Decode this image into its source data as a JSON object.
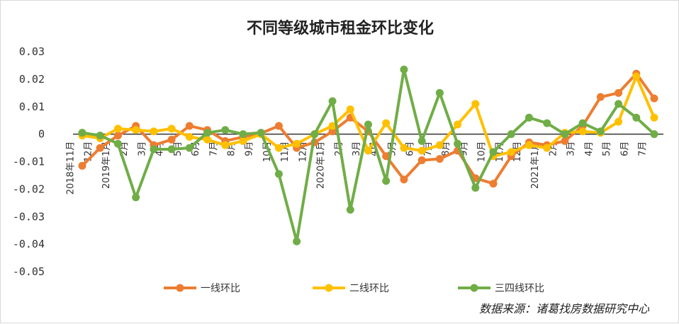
{
  "chart_data": {
    "type": "line",
    "title": "不同等级城市租金环比变化",
    "source": "数据来源：诸葛找房数据研究中心",
    "ylim": [
      -0.05,
      0.03
    ],
    "yticks": [
      "0.03",
      "0.02",
      "0.01",
      "0",
      "-0.01",
      "-0.02",
      "-0.03",
      "-0.04",
      "-0.05"
    ],
    "ytick_values": [
      0.03,
      0.02,
      0.01,
      0,
      -0.01,
      -0.02,
      -0.03,
      -0.04,
      -0.05
    ],
    "categories": [
      "2018年11月",
      "12月",
      "2019年1月",
      "2月",
      "3月",
      "4月",
      "5月",
      "6月",
      "7月",
      "8月",
      "9月",
      "10月",
      "11月",
      "12月",
      "2020年1月",
      "2月",
      "3月",
      "4月",
      "5月",
      "6月",
      "7月",
      "8月",
      "9月",
      "10月",
      "11月",
      "12月",
      "2021年1月",
      "2月",
      "3月",
      "4月",
      "5月",
      "6月",
      "7月"
    ],
    "grid": false,
    "legend_position": "bottom",
    "series": [
      {
        "name": "一线环比",
        "color": "#ed7d31",
        "values": [
          -0.0115,
          -0.005,
          -0.0005,
          0.003,
          -0.004,
          -0.002,
          0.003,
          0.0015,
          -0.0025,
          -0.001,
          0.0003,
          0.003,
          -0.005,
          -0.003,
          0.001,
          0.006,
          0.001,
          -0.008,
          -0.0165,
          -0.0095,
          -0.009,
          -0.006,
          -0.016,
          -0.018,
          -0.008,
          -0.003,
          -0.004,
          -0.0025,
          0.003,
          0.0135,
          0.015,
          0.022,
          0.013
        ]
      },
      {
        "name": "二线环比",
        "color": "#ffc000",
        "values": [
          -0.0005,
          -0.0015,
          0.002,
          0.0015,
          0.001,
          0.002,
          -0.001,
          -0.002,
          -0.004,
          -0.0025,
          0.0,
          -0.005,
          -0.0035,
          0.0,
          0.003,
          0.009,
          -0.006,
          0.004,
          -0.005,
          -0.006,
          -0.004,
          0.0035,
          0.011,
          -0.008,
          -0.0065,
          -0.004,
          -0.005,
          0.0005,
          0.001,
          0.0005,
          0.0045,
          0.021,
          0.006
        ]
      },
      {
        "name": "三四线环比",
        "color": "#70ad47",
        "values": [
          0.0005,
          -0.0005,
          -0.0035,
          -0.023,
          -0.0055,
          -0.0055,
          -0.005,
          0.0005,
          0.0015,
          0.0,
          0.0005,
          -0.0145,
          -0.039,
          0.0,
          0.012,
          -0.0275,
          0.0035,
          -0.017,
          0.0235,
          -0.0025,
          0.015,
          -0.0035,
          -0.0195,
          -0.0065,
          0.0,
          0.006,
          0.004,
          0.0,
          0.004,
          0.001,
          0.011,
          0.006,
          0.0
        ]
      }
    ]
  }
}
